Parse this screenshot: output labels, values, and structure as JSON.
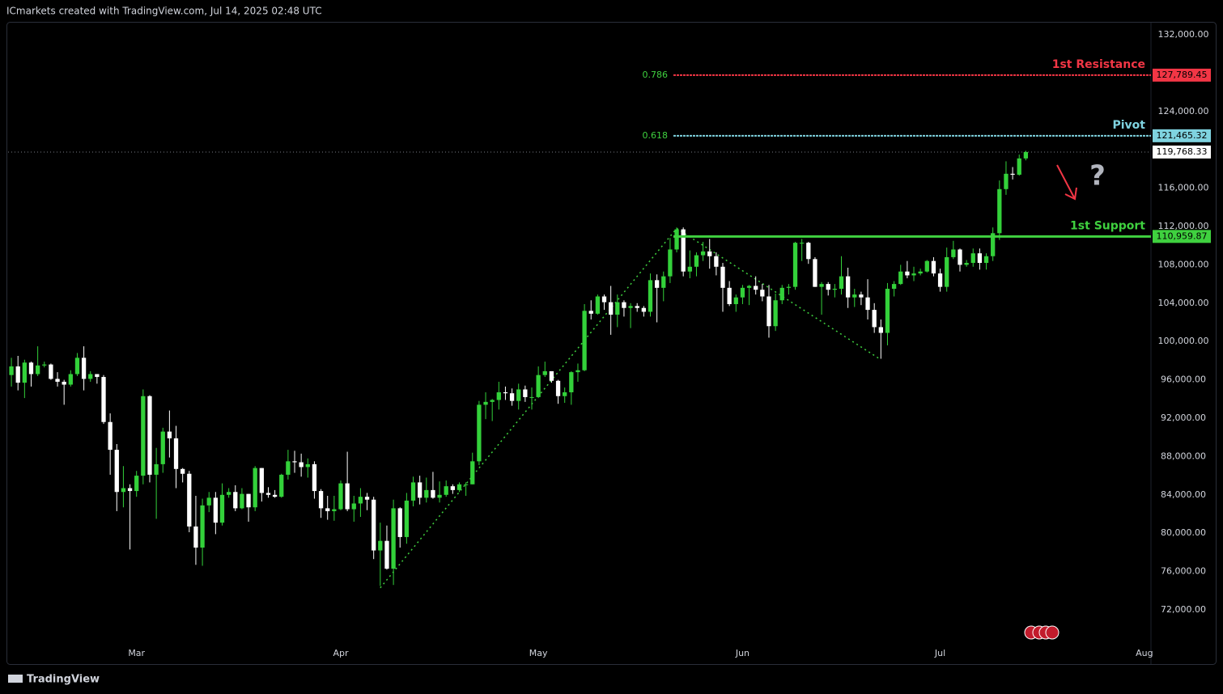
{
  "header": "ICmarkets created with TradingView.com, Jul 14, 2025 02:48 UTC",
  "footer": "TradingView",
  "chart_data": {
    "type": "candlestick",
    "up_color": "#33d13a",
    "down_color": "#ffffff",
    "xlim": [
      -0.5,
      173
    ],
    "xticks": [
      {
        "value": 19,
        "label": "Mar"
      },
      {
        "value": 50,
        "label": "Apr"
      },
      {
        "value": 80,
        "label": "May"
      },
      {
        "value": 111,
        "label": "Jun"
      },
      {
        "value": 141,
        "label": "Jul"
      },
      {
        "value": 172,
        "label": "Aug"
      }
    ],
    "ylim": [
      68540,
      133266
    ],
    "yticks": [
      {
        "value": 72000,
        "label": "72,000.00"
      },
      {
        "value": 76000,
        "label": "76,000.00"
      },
      {
        "value": 80000,
        "label": "80,000.00"
      },
      {
        "value": 84000,
        "label": "84,000.00"
      },
      {
        "value": 88000,
        "label": "88,000.00"
      },
      {
        "value": 92000,
        "label": "92,000.00"
      },
      {
        "value": 96000,
        "label": "96,000.00"
      },
      {
        "value": 100000,
        "label": "100,000.00"
      },
      {
        "value": 104000,
        "label": "104,000.00"
      },
      {
        "value": 108000,
        "label": "108,000.00"
      },
      {
        "value": 112000,
        "label": "112,000.00"
      },
      {
        "value": 116000,
        "label": "116,000.00"
      },
      {
        "value": 120000,
        "label": "120,000.00"
      },
      {
        "value": 124000,
        "label": "124,000.00"
      },
      {
        "value": 128000,
        "label": "128,000.00"
      },
      {
        "value": 132000,
        "label": "132,000.00"
      }
    ],
    "open": [
      96500,
      97400,
      95700,
      97800,
      96600,
      97500,
      97600,
      96100,
      95800,
      95500,
      96600,
      98300,
      96100,
      96600,
      96300,
      91600,
      88700,
      84300,
      84700,
      84400,
      86000,
      94300,
      86100,
      87200,
      90600,
      89900,
      86700,
      86200,
      80700,
      78500,
      82900,
      83700,
      81100,
      84000,
      84300,
      82600,
      84100,
      82700,
      86800,
      84200,
      84000,
      83800,
      86100,
      87500,
      87400,
      86900,
      87200,
      84400,
      82600,
      82300,
      82500,
      85200,
      82500,
      83100,
      83800,
      83500,
      78200,
      79200,
      76300,
      82600,
      79600,
      83400,
      85300,
      83700,
      84500,
      83700,
      84000,
      84900,
      84500,
      85100,
      85100,
      87500,
      93400,
      93700,
      93900,
      94700,
      94600,
      93800,
      95000,
      94200,
      94200,
      96500,
      96900,
      95900,
      94300,
      94700,
      96800,
      97000,
      103200,
      102900,
      104700,
      104100,
      102800,
      104100,
      103500,
      103700,
      103500,
      103100,
      106400,
      105600,
      106800,
      109600,
      111700,
      107300,
      107800,
      109000,
      109400,
      108900,
      107800,
      105600,
      103900,
      104600,
      105600,
      105800,
      105400,
      104700,
      101600,
      104300,
      105600,
      105700,
      110300,
      110300,
      108600,
      105700,
      106000,
      105400,
      105500,
      106800,
      104600,
      104900,
      104600,
      103300,
      101500,
      100900,
      105500,
      106000,
      107300,
      106900,
      107100,
      107300,
      108400,
      107100,
      105700,
      108800,
      109600,
      108000,
      108200,
      109200,
      108200,
      108900,
      111300,
      115900,
      117500,
      117400,
      119100
    ],
    "high": [
      98300,
      98500,
      98100,
      97900,
      99500,
      97900,
      97700,
      96800,
      96000,
      97000,
      98800,
      99500,
      96900,
      96600,
      96500,
      92500,
      89300,
      87000,
      85100,
      86500,
      95000,
      94400,
      88900,
      91000,
      92800,
      91200,
      86800,
      86500,
      83900,
      83600,
      84300,
      84300,
      85200,
      84700,
      85000,
      84700,
      84100,
      87000,
      86800,
      84800,
      84500,
      86200,
      88700,
      88600,
      88300,
      87800,
      87500,
      84600,
      83900,
      83900,
      85500,
      88500,
      83900,
      84700,
      84200,
      83800,
      81100,
      80800,
      83500,
      82700,
      84200,
      85900,
      86000,
      85800,
      86400,
      85400,
      85500,
      85100,
      85300,
      85300,
      88400,
      93800,
      94700,
      94000,
      95800,
      95300,
      95100,
      95600,
      95400,
      95200,
      97400,
      97900,
      96900,
      96000,
      95200,
      96900,
      97700,
      103900,
      104300,
      104900,
      104900,
      105800,
      104900,
      104300,
      104000,
      104000,
      103700,
      107100,
      107000,
      107300,
      110800,
      111900,
      111900,
      109500,
      109300,
      110400,
      110700,
      109300,
      108200,
      106300,
      104900,
      105900,
      105900,
      106800,
      106000,
      105900,
      105000,
      105900,
      106000,
      110400,
      110700,
      110400,
      108800,
      106200,
      106200,
      106000,
      108900,
      107700,
      105500,
      105200,
      106500,
      104000,
      102300,
      106100,
      106300,
      108000,
      108400,
      107800,
      107600,
      108500,
      108800,
      107600,
      109800,
      110500,
      109700,
      108500,
      109700,
      109700,
      109200,
      111900,
      116800,
      118800,
      118200,
      119500,
      119900
    ],
    "low": [
      95300,
      94900,
      94100,
      95300,
      96400,
      97300,
      96000,
      95300,
      93400,
      95300,
      96400,
      94900,
      95800,
      95600,
      91400,
      86100,
      82300,
      82700,
      78300,
      83800,
      85100,
      85300,
      81500,
      86300,
      87900,
      84700,
      85300,
      80100,
      76700,
      76600,
      82200,
      79900,
      80800,
      83700,
      82300,
      82500,
      81200,
      82300,
      83300,
      83700,
      83700,
      83700,
      85600,
      86300,
      85900,
      85800,
      83600,
      81600,
      81400,
      81300,
      82400,
      82300,
      81200,
      81700,
      82400,
      77300,
      74500,
      76200,
      74600,
      78500,
      78900,
      82800,
      83000,
      83200,
      83600,
      83200,
      83800,
      84100,
      84300,
      83900,
      85100,
      87100,
      91900,
      91700,
      92900,
      93900,
      93300,
      92900,
      93700,
      92900,
      94100,
      96300,
      95700,
      93500,
      93600,
      93400,
      95800,
      96900,
      102300,
      102800,
      103300,
      100700,
      101500,
      102600,
      101400,
      103100,
      102600,
      102600,
      102000,
      104200,
      106100,
      109300,
      106800,
      106600,
      106800,
      108400,
      107600,
      106900,
      103100,
      103700,
      103100,
      103900,
      103800,
      104900,
      104200,
      100400,
      101100,
      103900,
      104900,
      105400,
      108400,
      108100,
      105700,
      102800,
      104800,
      104600,
      104900,
      103500,
      103600,
      103800,
      102300,
      100900,
      98200,
      99600,
      104700,
      105900,
      106600,
      106300,
      106900,
      107200,
      106800,
      105200,
      105200,
      108600,
      107300,
      107800,
      107800,
      107500,
      107500,
      108400,
      110600,
      115300,
      116900,
      117300,
      118900
    ],
    "close": [
      97400,
      95700,
      97800,
      96600,
      97500,
      97600,
      96100,
      95800,
      95500,
      96600,
      98300,
      96100,
      96600,
      96300,
      91600,
      88700,
      84300,
      84700,
      84400,
      86000,
      94300,
      86100,
      87200,
      90600,
      89900,
      86700,
      86200,
      80700,
      78500,
      82900,
      83700,
      81100,
      84000,
      84300,
      82600,
      84100,
      82700,
      86800,
      84200,
      84000,
      83800,
      86100,
      87500,
      87400,
      86900,
      87200,
      84400,
      82600,
      82300,
      82500,
      85200,
      82500,
      83100,
      83800,
      83500,
      78200,
      79200,
      76300,
      82600,
      79600,
      83400,
      85300,
      83700,
      84500,
      83700,
      84000,
      84900,
      84500,
      85100,
      85100,
      87500,
      93400,
      93700,
      93900,
      94700,
      94600,
      93800,
      95000,
      94200,
      94200,
      96500,
      96900,
      95900,
      94300,
      94700,
      96800,
      97000,
      103200,
      102900,
      104700,
      104100,
      102800,
      104100,
      103500,
      103700,
      103500,
      103100,
      106400,
      105600,
      106800,
      109600,
      111700,
      107300,
      107800,
      109000,
      109400,
      108900,
      107800,
      105600,
      103900,
      104600,
      105600,
      105800,
      105400,
      104700,
      101600,
      104300,
      105600,
      105700,
      110300,
      110300,
      108600,
      105700,
      106000,
      105400,
      105500,
      106800,
      104600,
      104900,
      104600,
      103300,
      101500,
      100900,
      105500,
      106000,
      107300,
      106900,
      107100,
      107300,
      108400,
      107100,
      105700,
      108800,
      109600,
      108000,
      108200,
      109200,
      108200,
      108900,
      111300,
      115900,
      117500,
      117400,
      119100,
      119768.33
    ],
    "levels": [
      {
        "name": "1st Resistance",
        "fib": "0.786",
        "value": 127789.45,
        "value_label": "127,789.45",
        "color": "#f23645"
      },
      {
        "name": "Pivot",
        "fib": "0.618",
        "value": 121465.32,
        "value_label": "121,465.32",
        "color": "#7fd3e0"
      },
      {
        "name": "1st Support",
        "value": 110959.87,
        "value_label": "110,959.87",
        "color": "#3fd13f"
      }
    ],
    "last_price": {
      "value": 119768.33,
      "label": "119,768.33"
    },
    "pattern_line": {
      "x": [
        56,
        101,
        132
      ],
      "y": [
        74300,
        111800,
        98100
      ],
      "color": "#3fd13f"
    },
    "annotation": "?"
  }
}
